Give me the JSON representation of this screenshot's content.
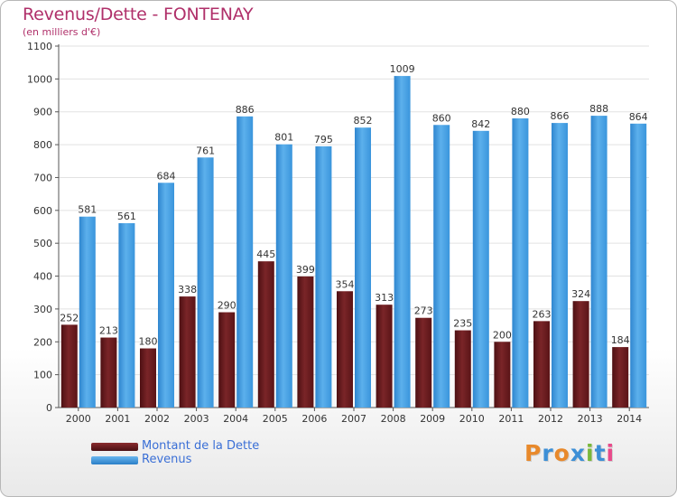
{
  "title": "Revenus/Dette - FONTENAY",
  "subtitle": "(en milliers d'€)",
  "logo": {
    "text": "Proxiti"
  },
  "chart_data": {
    "type": "bar",
    "title": "Revenus/Dette - FONTENAY",
    "subtitle": "(en milliers d'€)",
    "xlabel": "",
    "ylabel": "",
    "ylim": [
      0,
      1100
    ],
    "yticks": [
      0,
      100,
      200,
      300,
      400,
      500,
      600,
      700,
      800,
      900,
      1000,
      1100
    ],
    "grid": true,
    "legend_position": "bottom-left",
    "categories": [
      "2000",
      "2001",
      "2002",
      "2003",
      "2004",
      "2005",
      "2006",
      "2007",
      "2008",
      "2009",
      "2010",
      "2011",
      "2012",
      "2013",
      "2014"
    ],
    "series": [
      {
        "name": "Montant de la Dette",
        "color": "#6e1c1f",
        "values": [
          252,
          213,
          180,
          338,
          290,
          445,
          399,
          354,
          313,
          273,
          235,
          200,
          263,
          324,
          184
        ]
      },
      {
        "name": "Revenus",
        "color": "#3d9ae0",
        "values": [
          581,
          561,
          684,
          761,
          886,
          801,
          795,
          852,
          1009,
          860,
          842,
          880,
          866,
          888,
          864
        ]
      }
    ]
  }
}
